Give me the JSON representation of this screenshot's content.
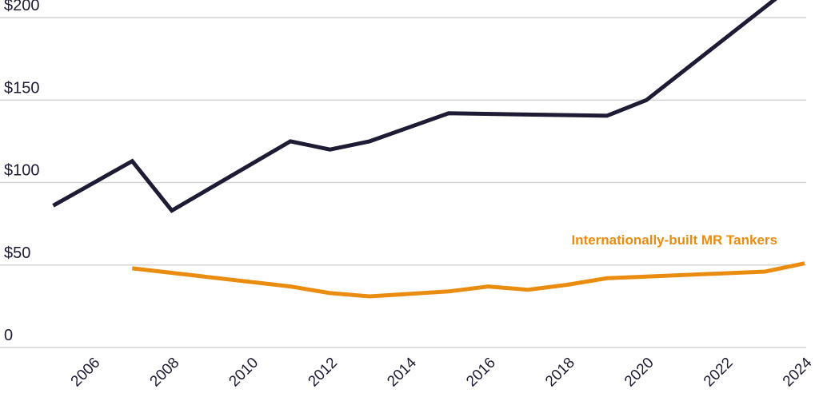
{
  "chart_data": {
    "type": "line",
    "title": "",
    "xlabel": "",
    "ylabel": "",
    "xlim": [
      2004,
      2024
    ],
    "ylim": [
      0,
      210
    ],
    "grid": true,
    "y_ticks": [
      {
        "value": 0,
        "label": "0"
      },
      {
        "value": 50,
        "label": "$50"
      },
      {
        "value": 100,
        "label": "$100"
      },
      {
        "value": 150,
        "label": "$150"
      },
      {
        "value": 200,
        "label": "$200"
      }
    ],
    "x_ticks": [
      {
        "value": 2006,
        "label": "2006"
      },
      {
        "value": 2008,
        "label": "2008"
      },
      {
        "value": 2010,
        "label": "2010"
      },
      {
        "value": 2012,
        "label": "2012"
      },
      {
        "value": 2014,
        "label": "2014"
      },
      {
        "value": 2016,
        "label": "2016"
      },
      {
        "value": 2018,
        "label": "2018"
      },
      {
        "value": 2020,
        "label": "2020"
      },
      {
        "value": 2022,
        "label": "2022"
      },
      {
        "value": 2024,
        "label": "2024"
      }
    ],
    "series": [
      {
        "color": "#1e1c34",
        "points": [
          [
            2005,
            86
          ],
          [
            2007,
            113
          ],
          [
            2008,
            83
          ],
          [
            2011,
            125
          ],
          [
            2012,
            120
          ],
          [
            2013,
            125
          ],
          [
            2015,
            142
          ],
          [
            2019,
            140.5
          ],
          [
            2020,
            150
          ],
          [
            2023.3,
            212
          ]
        ]
      },
      {
        "name": "Internationally-built MR Tankers",
        "color": "#ea8c0f",
        "points": [
          [
            2007,
            48
          ],
          [
            2011,
            37
          ],
          [
            2012,
            33
          ],
          [
            2013,
            31
          ],
          [
            2015,
            34
          ],
          [
            2016,
            37
          ],
          [
            2017,
            35
          ],
          [
            2018,
            38
          ],
          [
            2019,
            42
          ],
          [
            2020,
            43
          ],
          [
            2023,
            46
          ],
          [
            2024,
            51
          ]
        ]
      }
    ]
  }
}
